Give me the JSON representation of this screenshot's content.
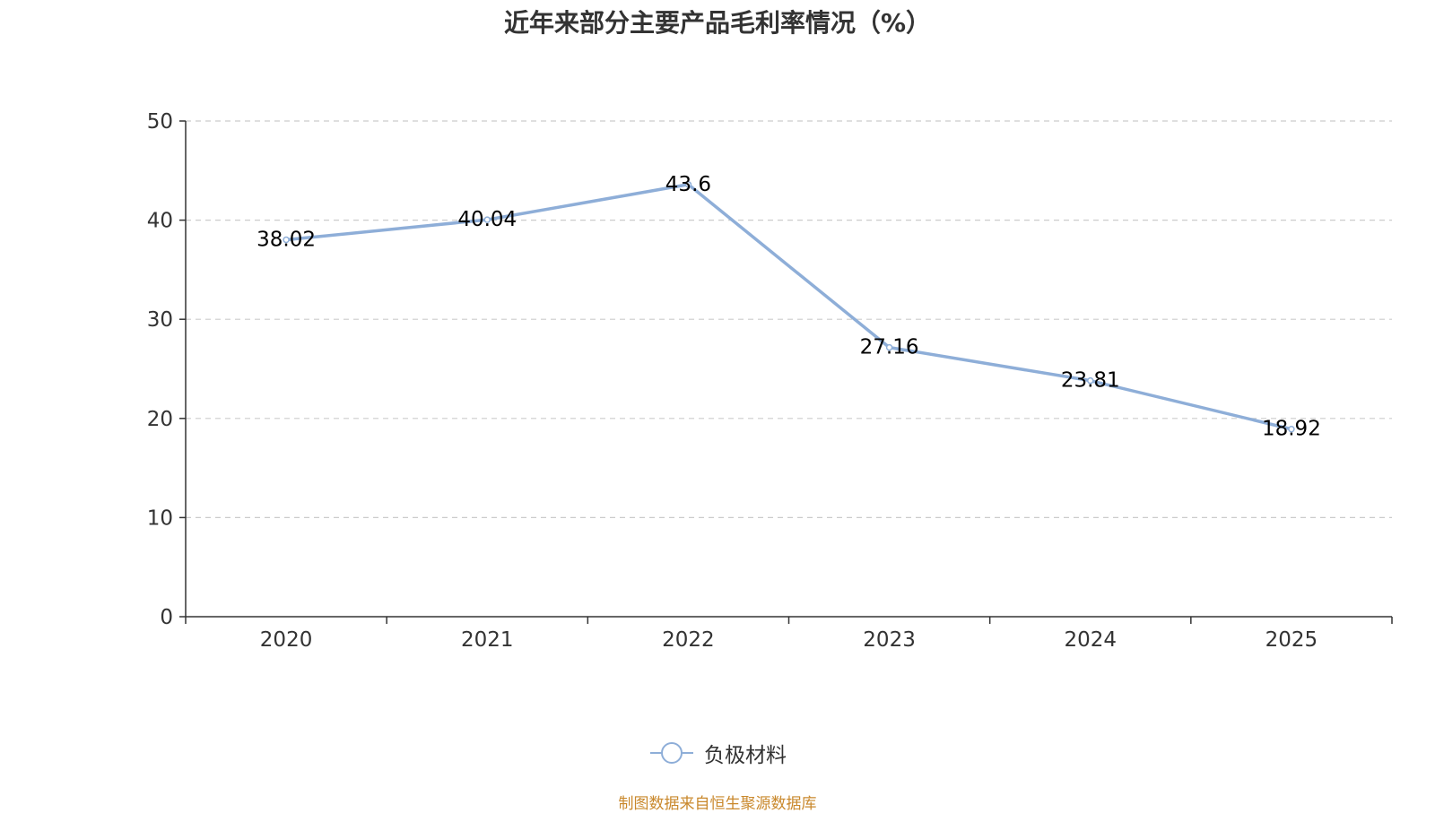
{
  "chart_data": {
    "type": "line",
    "title": "近年来部分主要产品毛利率情况（%）",
    "categories": [
      "2020",
      "2021",
      "2022",
      "2023",
      "2024",
      "2025"
    ],
    "series": [
      {
        "name": "负极材料",
        "values": [
          38.02,
          40.04,
          43.6,
          27.16,
          23.81,
          18.92
        ],
        "labels": [
          "38.02",
          "40.04",
          "43.6",
          "27.16",
          "23.81",
          "18.92"
        ],
        "color": "#8eaed8"
      }
    ],
    "ylim": [
      0,
      50
    ],
    "yticks": [
      "0",
      "10",
      "20",
      "30",
      "40",
      "50"
    ],
    "xlabel": "",
    "ylabel": "",
    "grid": true,
    "legend_position": "bottom-center"
  },
  "source": "制图数据来自恒生聚源数据库",
  "colors": {
    "axis": "#333333",
    "grid": "#cccccc",
    "label": "#000000",
    "tick_text": "#333333",
    "source": "#c9882c"
  }
}
